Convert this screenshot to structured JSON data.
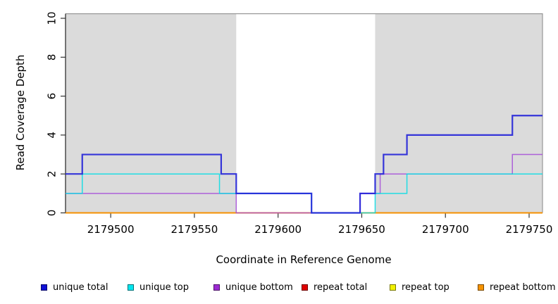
{
  "chart_data": {
    "type": "line",
    "subtype": "step",
    "title": "",
    "xlabel": "Coordinate in Reference Genome",
    "ylabel": "Read Coverage Depth",
    "xlim": [
      2179473,
      2179758
    ],
    "ylim": [
      0,
      10
    ],
    "xticks": [
      2179500,
      2179550,
      2179600,
      2179650,
      2179700,
      2179750
    ],
    "yticks": [
      0,
      2,
      4,
      6,
      8,
      10
    ],
    "grid": false,
    "shaded_regions": [
      {
        "name": "left-repeat-region",
        "x0": 2179473,
        "x1": 2179575,
        "color": "#DBDBDB"
      },
      {
        "name": "right-repeat-region",
        "x0": 2179658,
        "x1": 2179758,
        "color": "#DBDBDB"
      }
    ],
    "series": [
      {
        "name": "repeat total",
        "color": "#DE1010",
        "width": 2,
        "opacity": 1,
        "steps": [
          [
            2179473,
            0
          ]
        ]
      },
      {
        "name": "repeat top",
        "color": "#EDED00",
        "width": 1.5,
        "opacity": 1,
        "steps": [
          [
            2179473,
            0
          ]
        ]
      },
      {
        "name": "repeat bottom",
        "color": "#F69100",
        "width": 2,
        "opacity": 1,
        "steps": [
          [
            2179473,
            0
          ]
        ]
      },
      {
        "name": "unique bottom",
        "color": "#A44BD8",
        "width": 1.5,
        "opacity": 0.85,
        "steps": [
          [
            2179473,
            1
          ],
          [
            2179575,
            0
          ],
          [
            2179649,
            1
          ],
          [
            2179661,
            2
          ],
          [
            2179740,
            3
          ]
        ]
      },
      {
        "name": "unique top",
        "color": "#00DCE4",
        "width": 1.5,
        "opacity": 0.85,
        "steps": [
          [
            2179473,
            1
          ],
          [
            2179483,
            2
          ],
          [
            2179565,
            1
          ],
          [
            2179620,
            0
          ],
          [
            2179658,
            1
          ],
          [
            2179677,
            2
          ]
        ]
      },
      {
        "name": "unique total",
        "color": "#2222D8",
        "width": 2.2,
        "opacity": 0.9,
        "steps": [
          [
            2179473,
            2
          ],
          [
            2179483,
            3
          ],
          [
            2179566,
            2
          ],
          [
            2179575,
            1
          ],
          [
            2179620,
            0
          ],
          [
            2179649,
            1
          ],
          [
            2179658,
            2
          ],
          [
            2179663,
            3
          ],
          [
            2179677,
            4
          ],
          [
            2179740,
            5
          ]
        ]
      }
    ],
    "legend_position": "bottom"
  },
  "legend": {
    "items": [
      {
        "label": "unique total",
        "color": "#1111D6"
      },
      {
        "label": "unique top",
        "color": "#00E5EE"
      },
      {
        "label": "unique bottom",
        "color": "#9C2BD2"
      },
      {
        "label": "repeat total",
        "color": "#DF0000"
      },
      {
        "label": "repeat top",
        "color": "#F0F000"
      },
      {
        "label": "repeat bottom",
        "color": "#F59300"
      }
    ]
  }
}
